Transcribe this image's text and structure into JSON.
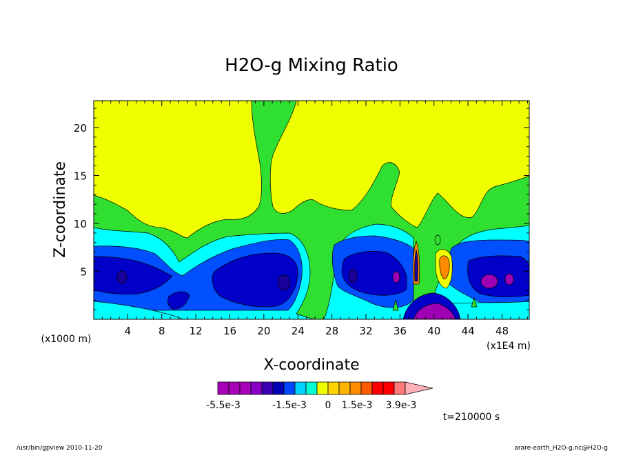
{
  "chart_data": {
    "type": "heatmap",
    "title": "H2O-g Mixing Ratio",
    "xlabel": "X-coordinate",
    "ylabel": "Z-coordinate",
    "x_unit_label": "(x1E4 m)",
    "y_unit_label": "(x1000 m)",
    "xlim": [
      0,
      51.2
    ],
    "ylim": [
      0,
      22.8
    ],
    "x_ticks": [
      4,
      8,
      12,
      16,
      20,
      24,
      28,
      32,
      36,
      40,
      44,
      48
    ],
    "x_tick_labels": [
      "4",
      "8",
      "12",
      "16",
      "20",
      "24",
      "28",
      "32",
      "36",
      "40",
      "44",
      "48"
    ],
    "y_ticks": [
      5,
      10,
      15,
      20
    ],
    "y_tick_labels": [
      "5",
      "10",
      "15",
      "20"
    ],
    "time_label": "t=210000 s",
    "colorbar": {
      "colors": [
        "#a800b8",
        "#a800b8",
        "#a800b8",
        "#8800c8",
        "#3c00b4",
        "#0000b4",
        "#0048ff",
        "#00d2ff",
        "#00ffd2",
        "#f0ff00",
        "#ffd200",
        "#ffb400",
        "#ff8c00",
        "#ff5a00",
        "#ff0000",
        "#ff0000",
        "#ff7a7a",
        "#ffb0b8"
      ],
      "tick_labels": [
        "-5.5e-3",
        "-1.5e-3",
        "0",
        "1.5e-3",
        "3.9e-3"
      ]
    },
    "contour_levels": [
      "#00b4dc",
      "#00ffff",
      "#0050ff",
      "#0000c8",
      "#1c009c",
      "#a000b4",
      "#30e030",
      "#f0ff00",
      "#ff8c00"
    ]
  },
  "footer": {
    "left": "/usr/bin/gpview  2010-11-20",
    "right": "arare-earth_H2O-g.nc@H2O-g"
  }
}
